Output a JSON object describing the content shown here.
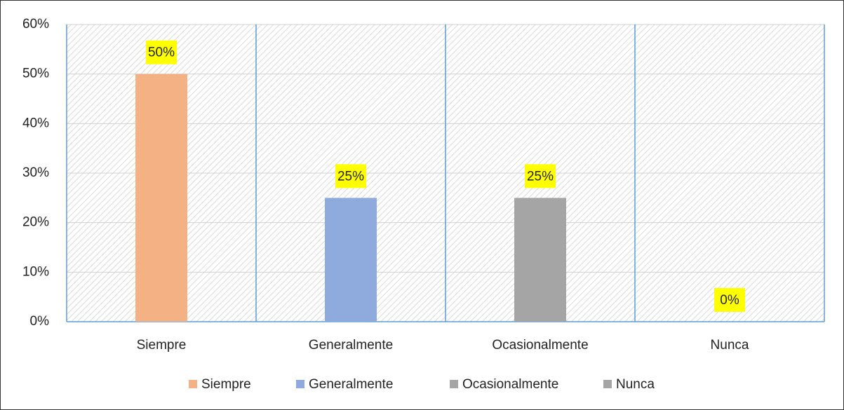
{
  "chart_data": {
    "type": "bar",
    "categories": [
      "Siempre",
      "Generalmente",
      "Ocasionalmente",
      "Nunca"
    ],
    "values": [
      50,
      25,
      25,
      0
    ],
    "value_labels": [
      "50%",
      "25%",
      "25%",
      "0%"
    ],
    "colors": [
      "#f4b183",
      "#8faadc",
      "#a5a5a5",
      "#a5a5a5"
    ],
    "ylim": [
      0,
      60
    ],
    "yticks": [
      {
        "value": 0,
        "label": "0%"
      },
      {
        "value": 10,
        "label": "10%"
      },
      {
        "value": 20,
        "label": "20%"
      },
      {
        "value": 30,
        "label": "30%"
      },
      {
        "value": 40,
        "label": "40%"
      },
      {
        "value": 50,
        "label": "50%"
      },
      {
        "value": 60,
        "label": "60%"
      }
    ],
    "grid": true,
    "legend": "bottom"
  }
}
